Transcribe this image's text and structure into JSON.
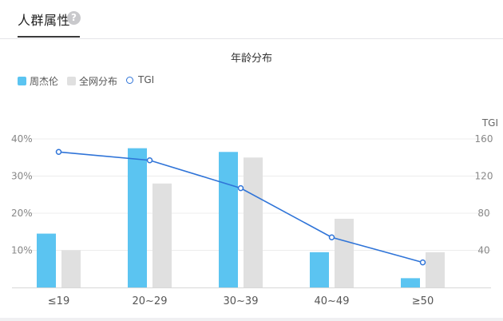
{
  "header": {
    "title": "人群属性",
    "help_icon": "question-circle-icon"
  },
  "chart_data": {
    "type": "bar",
    "title": "年龄分布",
    "categories": [
      "≤19",
      "20~29",
      "30~39",
      "40~49",
      "≥50"
    ],
    "series": [
      {
        "name": "周杰伦",
        "type": "bar",
        "axis": "left",
        "color": "#5bc4f1",
        "values": [
          14.5,
          37.5,
          36.5,
          9.5,
          2.5
        ]
      },
      {
        "name": "全网分布",
        "type": "bar",
        "axis": "left",
        "color": "#e0e0e0",
        "values": [
          10,
          28,
          35,
          18.5,
          9.5
        ]
      },
      {
        "name": "TGI",
        "type": "line",
        "axis": "right",
        "color": "#2f74d8",
        "values": [
          146,
          137,
          107,
          54,
          27
        ]
      }
    ],
    "y_left": {
      "ticks": [
        "10%",
        "20%",
        "30%",
        "40%"
      ],
      "range": [
        0,
        40
      ]
    },
    "y_right": {
      "label": "TGI",
      "ticks": [
        "40",
        "80",
        "120",
        "160"
      ],
      "range": [
        0,
        160
      ]
    },
    "grid": true,
    "legend_position": "top-left"
  }
}
